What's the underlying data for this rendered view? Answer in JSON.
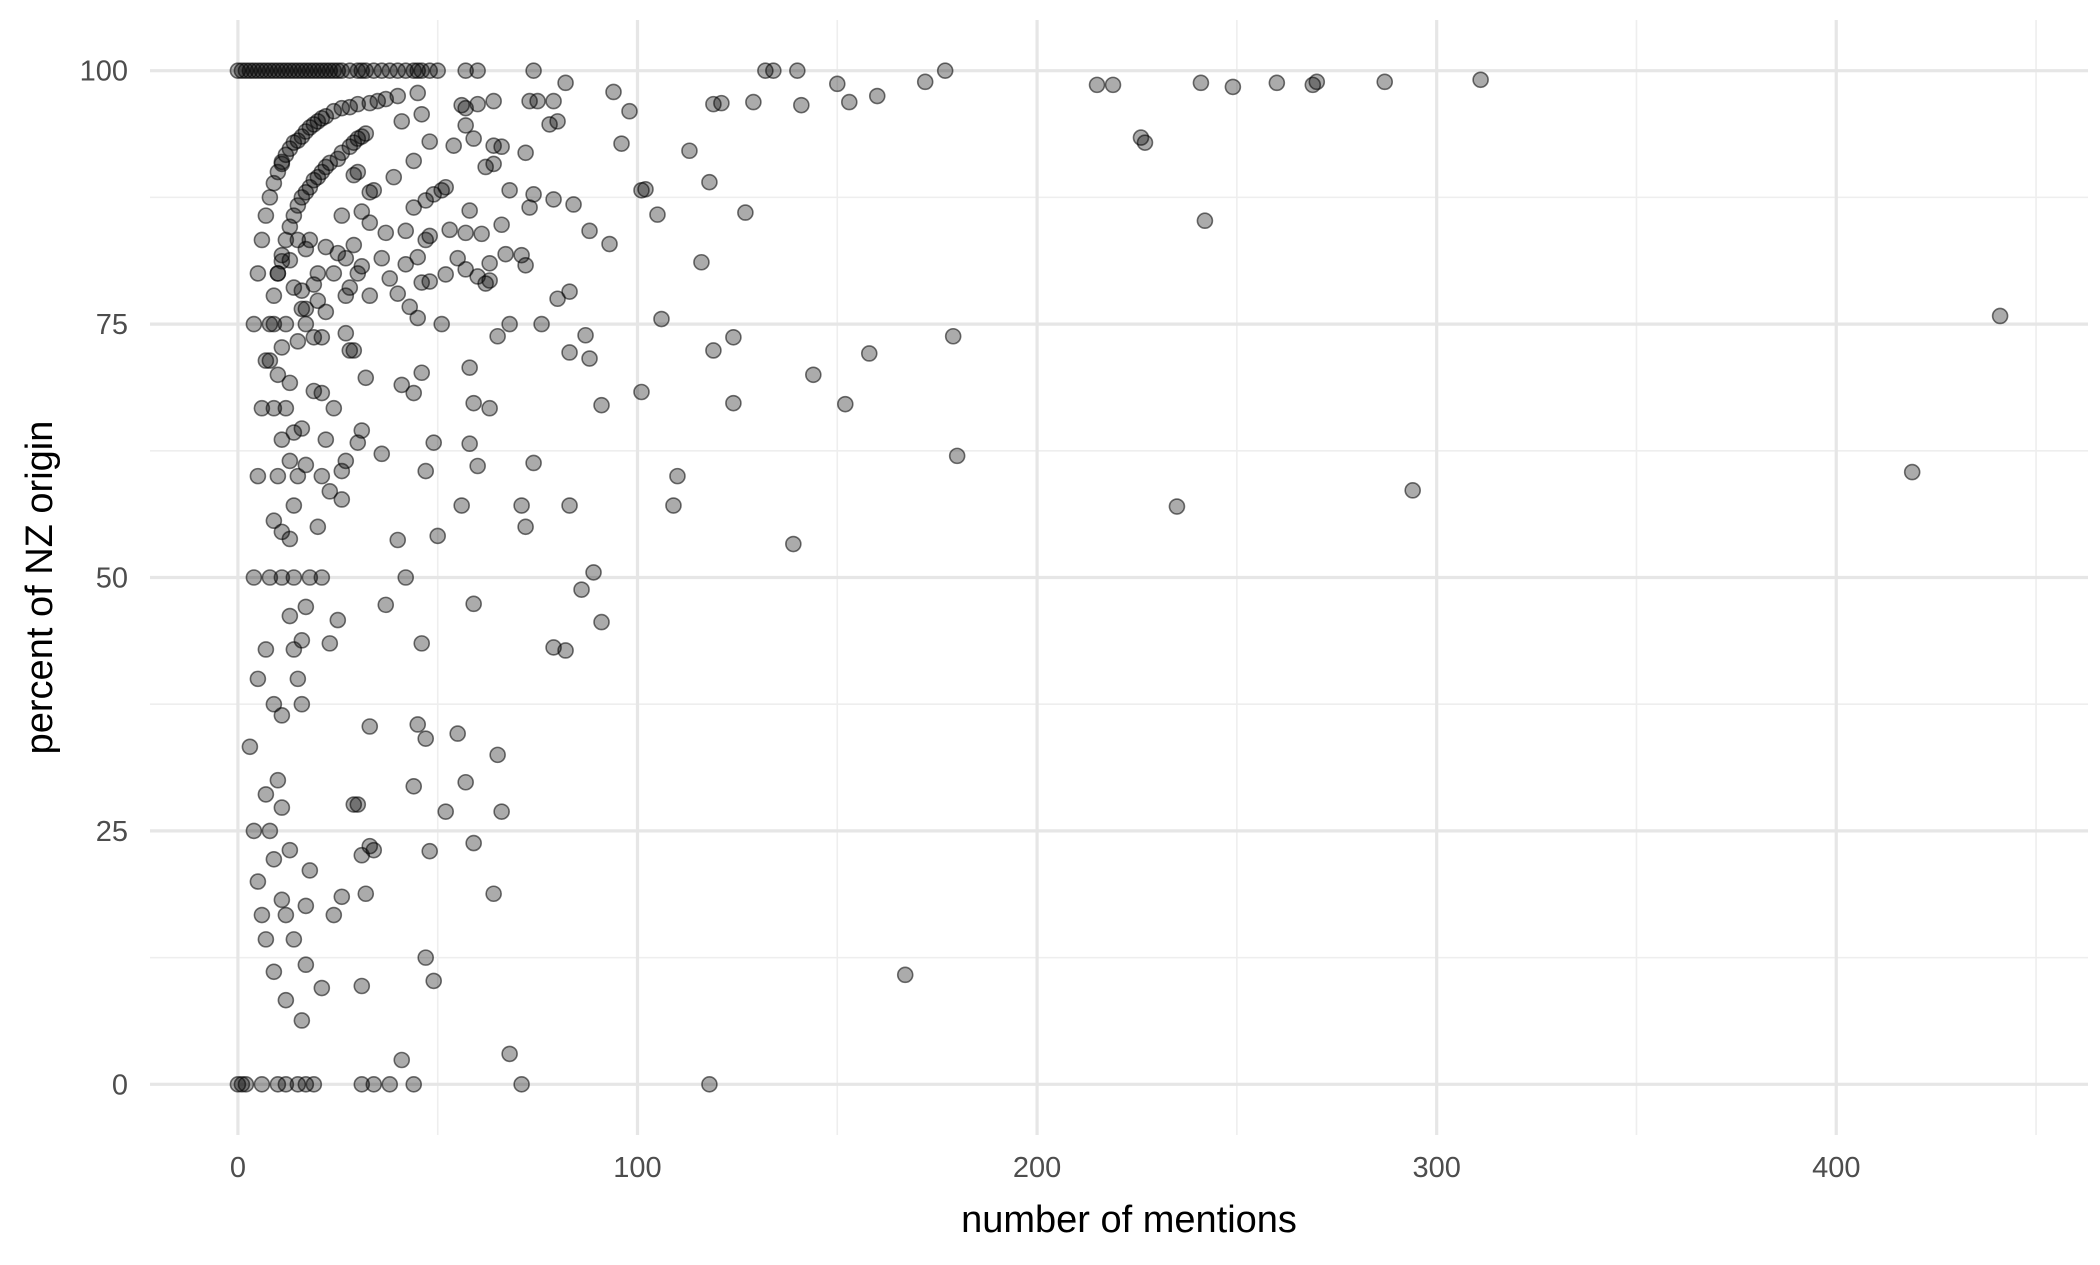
{
  "chart_data": {
    "type": "scatter",
    "xlabel": "number of mentions",
    "ylabel": "percent of NZ origin",
    "xlim": [
      -22,
      463
    ],
    "ylim": [
      -5,
      105
    ],
    "x_ticks": [
      0,
      100,
      200,
      300,
      400
    ],
    "y_ticks": [
      0,
      25,
      50,
      75,
      100
    ],
    "x_minor_ticks": [
      50,
      150,
      250,
      350,
      450
    ],
    "y_minor_ticks": [
      12.5,
      37.5,
      62.5,
      87.5
    ],
    "x_tick_labels": [
      "0",
      "100",
      "200",
      "300",
      "400"
    ],
    "y_tick_labels": [
      "0",
      "25",
      "50",
      "75",
      "100"
    ],
    "grid": true,
    "point_color": "#000000",
    "point_alpha": 0.33,
    "points": [
      [
        0,
        100
      ],
      [
        1,
        100
      ],
      [
        2,
        100
      ],
      [
        3,
        100
      ],
      [
        4,
        100
      ],
      [
        5,
        100
      ],
      [
        6,
        100
      ],
      [
        7,
        100
      ],
      [
        8,
        100
      ],
      [
        9,
        100
      ],
      [
        10,
        100
      ],
      [
        11,
        100
      ],
      [
        12,
        100
      ],
      [
        13,
        100
      ],
      [
        14,
        100
      ],
      [
        15,
        100
      ],
      [
        16,
        100
      ],
      [
        17,
        100
      ],
      [
        18,
        100
      ],
      [
        19,
        100
      ],
      [
        20,
        100
      ],
      [
        21,
        100
      ],
      [
        22,
        100
      ],
      [
        23,
        100
      ],
      [
        24,
        100
      ],
      [
        25,
        100
      ],
      [
        26,
        100
      ],
      [
        28,
        100
      ],
      [
        30,
        100
      ],
      [
        31,
        100
      ],
      [
        32,
        100
      ],
      [
        34,
        100
      ],
      [
        36,
        100
      ],
      [
        38,
        100
      ],
      [
        40,
        100
      ],
      [
        42,
        100
      ],
      [
        44,
        100
      ],
      [
        45,
        100
      ],
      [
        46,
        100
      ],
      [
        48,
        100
      ],
      [
        50,
        100
      ],
      [
        57,
        100
      ],
      [
        60,
        100
      ],
      [
        74,
        100
      ],
      [
        132,
        100
      ],
      [
        134,
        100
      ],
      [
        140,
        100
      ],
      [
        177,
        100
      ],
      [
        60,
        96.7
      ],
      [
        64,
        97
      ],
      [
        73,
        97
      ],
      [
        75,
        97
      ],
      [
        79,
        97
      ],
      [
        82,
        98.8
      ],
      [
        94,
        97.9
      ],
      [
        98,
        96
      ],
      [
        119,
        96.7
      ],
      [
        121,
        96.8
      ],
      [
        129,
        96.9
      ],
      [
        141,
        96.6
      ],
      [
        150,
        98.7
      ],
      [
        153,
        96.9
      ],
      [
        160,
        97.5
      ],
      [
        172,
        98.9
      ],
      [
        215,
        98.6
      ],
      [
        219,
        98.6
      ],
      [
        241,
        98.8
      ],
      [
        249,
        98.4
      ],
      [
        260,
        98.8
      ],
      [
        269,
        98.6
      ],
      [
        270,
        98.9
      ],
      [
        287,
        98.9
      ],
      [
        311,
        99.1
      ],
      [
        45,
        97.8
      ],
      [
        37,
        97.2
      ],
      [
        40,
        97.5
      ],
      [
        35,
        97
      ],
      [
        33,
        96.8
      ],
      [
        30,
        96.7
      ],
      [
        28,
        96.4
      ],
      [
        26,
        96.3
      ],
      [
        24,
        96
      ],
      [
        22,
        95.5
      ],
      [
        21,
        95.3
      ],
      [
        20,
        95
      ],
      [
        19,
        94.7
      ],
      [
        18,
        94.4
      ],
      [
        17,
        94
      ],
      [
        16,
        93.5
      ],
      [
        15,
        93.1
      ],
      [
        14,
        92.9
      ],
      [
        13,
        92.3
      ],
      [
        12,
        91.7
      ],
      [
        11,
        91
      ],
      [
        10,
        90
      ],
      [
        11,
        90.8
      ],
      [
        9,
        88.9
      ],
      [
        8,
        87.5
      ],
      [
        7,
        85.7
      ],
      [
        6,
        83.3
      ],
      [
        5,
        80
      ],
      [
        4,
        75
      ],
      [
        41,
        95
      ],
      [
        46,
        95.7
      ],
      [
        56,
        96.6
      ],
      [
        57,
        96.3
      ],
      [
        57,
        94.6
      ],
      [
        78,
        94.7
      ],
      [
        80,
        95
      ],
      [
        44,
        91.1
      ],
      [
        48,
        93
      ],
      [
        59,
        93.3
      ],
      [
        64,
        92.6
      ],
      [
        66,
        92.5
      ],
      [
        54,
        92.6
      ],
      [
        72,
        91.9
      ],
      [
        96,
        92.8
      ],
      [
        113,
        92.1
      ],
      [
        226,
        93.4
      ],
      [
        227,
        92.9
      ],
      [
        30,
        93.3
      ],
      [
        31,
        93.5
      ],
      [
        32,
        93.8
      ],
      [
        29,
        92.9
      ],
      [
        28,
        92.5
      ],
      [
        26,
        91.9
      ],
      [
        25,
        91.3
      ],
      [
        23,
        90.9
      ],
      [
        22,
        90.5
      ],
      [
        21,
        90
      ],
      [
        20,
        89.5
      ],
      [
        19,
        89.2
      ],
      [
        18,
        88.5
      ],
      [
        17,
        88
      ],
      [
        16,
        87.5
      ],
      [
        15,
        86.7
      ],
      [
        14,
        85.7
      ],
      [
        13,
        84.6
      ],
      [
        12,
        83.3
      ],
      [
        11,
        81.8
      ],
      [
        10,
        80
      ],
      [
        9,
        77.8
      ],
      [
        8,
        75
      ],
      [
        7,
        71.4
      ],
      [
        6,
        66.7
      ],
      [
        5,
        60
      ],
      [
        4,
        50
      ],
      [
        3,
        33.3
      ],
      [
        2,
        0
      ],
      [
        1,
        0
      ],
      [
        0,
        0
      ],
      [
        30,
        90
      ],
      [
        34,
        88.2
      ],
      [
        33,
        88
      ],
      [
        29,
        89.7
      ],
      [
        39,
        89.5
      ],
      [
        44,
        86.5
      ],
      [
        47,
        87.2
      ],
      [
        49,
        87.8
      ],
      [
        51,
        88.2
      ],
      [
        52,
        88.5
      ],
      [
        62,
        90.5
      ],
      [
        64,
        90.8
      ],
      [
        68,
        88.2
      ],
      [
        73,
        86.5
      ],
      [
        74,
        87.8
      ],
      [
        79,
        87.3
      ],
      [
        84,
        86.8
      ],
      [
        101,
        88.2
      ],
      [
        102,
        88.3
      ],
      [
        118,
        89
      ],
      [
        105,
        85.8
      ],
      [
        127,
        86
      ],
      [
        242,
        85.2
      ],
      [
        26,
        85.7
      ],
      [
        33,
        85
      ],
      [
        31,
        86.1
      ],
      [
        37,
        84
      ],
      [
        42,
        84.2
      ],
      [
        47,
        83.3
      ],
      [
        48,
        83.7
      ],
      [
        53,
        84.3
      ],
      [
        57,
        84
      ],
      [
        58,
        86.2
      ],
      [
        61,
        83.9
      ],
      [
        66,
        84.8
      ],
      [
        88,
        84.2
      ],
      [
        93,
        82.9
      ],
      [
        55,
        81.5
      ],
      [
        63,
        81
      ],
      [
        67,
        81.9
      ],
      [
        71,
        81.8
      ],
      [
        72,
        80.8
      ],
      [
        116,
        81.1
      ],
      [
        22,
        82.6
      ],
      [
        25,
        82
      ],
      [
        27,
        81.5
      ],
      [
        29,
        82.8
      ],
      [
        31,
        80.7
      ],
      [
        36,
        81.5
      ],
      [
        42,
        80.9
      ],
      [
        45,
        81.6
      ],
      [
        17,
        82.4
      ],
      [
        18,
        83.3
      ],
      [
        15,
        83.3
      ],
      [
        13,
        81.3
      ],
      [
        11,
        81.2
      ],
      [
        14,
        78.6
      ],
      [
        16,
        78.3
      ],
      [
        19,
        78.9
      ],
      [
        20,
        80
      ],
      [
        24,
        80
      ],
      [
        27,
        77.8
      ],
      [
        30,
        80
      ],
      [
        38,
        79.5
      ],
      [
        40,
        78
      ],
      [
        46,
        79.1
      ],
      [
        48,
        79.2
      ],
      [
        52,
        79.9
      ],
      [
        57,
        80.4
      ],
      [
        60,
        79.7
      ],
      [
        62,
        79
      ],
      [
        63,
        79.3
      ],
      [
        80,
        77.5
      ],
      [
        83,
        78.2
      ],
      [
        10,
        80
      ],
      [
        12,
        75
      ],
      [
        16,
        76.5
      ],
      [
        17,
        76.5
      ],
      [
        20,
        77.3
      ],
      [
        22,
        76.2
      ],
      [
        28,
        78.6
      ],
      [
        33,
        77.8
      ],
      [
        43,
        76.7
      ],
      [
        45,
        75.6
      ],
      [
        21,
        73.7
      ],
      [
        27,
        74.1
      ],
      [
        28,
        72.4
      ],
      [
        29,
        72.4
      ],
      [
        15,
        73.3
      ],
      [
        17,
        75
      ],
      [
        19,
        73.7
      ],
      [
        9,
        75
      ],
      [
        11,
        72.7
      ],
      [
        8,
        71.4
      ],
      [
        10,
        70
      ],
      [
        13,
        69.2
      ],
      [
        19,
        68.4
      ],
      [
        21,
        68.2
      ],
      [
        24,
        66.7
      ],
      [
        32,
        69.7
      ],
      [
        41,
        69
      ],
      [
        44,
        68.2
      ],
      [
        46,
        70.2
      ],
      [
        51,
        75
      ],
      [
        58,
        70.7
      ],
      [
        65,
        73.8
      ],
      [
        68,
        75
      ],
      [
        76,
        75
      ],
      [
        83,
        72.2
      ],
      [
        87,
        73.9
      ],
      [
        88,
        71.6
      ],
      [
        106,
        75.5
      ],
      [
        119,
        72.4
      ],
      [
        124,
        73.7
      ],
      [
        144,
        70
      ],
      [
        158,
        72.1
      ],
      [
        179,
        73.8
      ],
      [
        441,
        75.8
      ],
      [
        9,
        66.7
      ],
      [
        11,
        63.6
      ],
      [
        12,
        66.7
      ],
      [
        14,
        64.3
      ],
      [
        16,
        64.7
      ],
      [
        22,
        63.6
      ],
      [
        30,
        63.3
      ],
      [
        31,
        64.5
      ],
      [
        27,
        61.5
      ],
      [
        26,
        60.5
      ],
      [
        21,
        60
      ],
      [
        17,
        61.1
      ],
      [
        15,
        60
      ],
      [
        13,
        61.5
      ],
      [
        10,
        60
      ],
      [
        9,
        55.6
      ],
      [
        11,
        54.5
      ],
      [
        13,
        53.8
      ],
      [
        14,
        57.1
      ],
      [
        20,
        55
      ],
      [
        23,
        58.5
      ],
      [
        26,
        57.7
      ],
      [
        36,
        62.2
      ],
      [
        47,
        60.5
      ],
      [
        49,
        63.3
      ],
      [
        58,
        63.2
      ],
      [
        59,
        67.2
      ],
      [
        60,
        61
      ],
      [
        63,
        66.7
      ],
      [
        74,
        61.3
      ],
      [
        101,
        68.3
      ],
      [
        91,
        67
      ],
      [
        110,
        60
      ],
      [
        124,
        67.2
      ],
      [
        152,
        67.1
      ],
      [
        180,
        62
      ],
      [
        56,
        57.1
      ],
      [
        71,
        57.1
      ],
      [
        72,
        55
      ],
      [
        83,
        57.1
      ],
      [
        109,
        57.1
      ],
      [
        40,
        53.7
      ],
      [
        50,
        54.1
      ],
      [
        139,
        53.3
      ],
      [
        235,
        57
      ],
      [
        294,
        58.6
      ],
      [
        419,
        60.4
      ],
      [
        8,
        50
      ],
      [
        11,
        50
      ],
      [
        14,
        50
      ],
      [
        18,
        50
      ],
      [
        21,
        50
      ],
      [
        42,
        50
      ],
      [
        59,
        47.4
      ],
      [
        86,
        48.8
      ],
      [
        89,
        50.5
      ],
      [
        91,
        45.6
      ],
      [
        37,
        47.3
      ],
      [
        25,
        45.8
      ],
      [
        13,
        46.2
      ],
      [
        17,
        47.1
      ],
      [
        23,
        43.5
      ],
      [
        16,
        43.8
      ],
      [
        14,
        42.9
      ],
      [
        7,
        42.9
      ],
      [
        46,
        43.5
      ],
      [
        79,
        43.1
      ],
      [
        82,
        42.8
      ],
      [
        5,
        40
      ],
      [
        15,
        40
      ],
      [
        9,
        37.5
      ],
      [
        16,
        37.5
      ],
      [
        11,
        36.4
      ],
      [
        33,
        35.3
      ],
      [
        45,
        35.5
      ],
      [
        47,
        34.1
      ],
      [
        55,
        34.6
      ],
      [
        65,
        32.5
      ],
      [
        57,
        29.8
      ],
      [
        66,
        26.9
      ],
      [
        52,
        26.9
      ],
      [
        44,
        29.4
      ],
      [
        29,
        27.6
      ],
      [
        30,
        27.6
      ],
      [
        10,
        30
      ],
      [
        7,
        28.6
      ],
      [
        11,
        27.3
      ],
      [
        8,
        25
      ],
      [
        4,
        25
      ],
      [
        13,
        23.1
      ],
      [
        9,
        22.2
      ],
      [
        31,
        22.6
      ],
      [
        33,
        23.5
      ],
      [
        34,
        23.1
      ],
      [
        48,
        23
      ],
      [
        59,
        23.8
      ],
      [
        18,
        21.1
      ],
      [
        5,
        20
      ],
      [
        11,
        18.2
      ],
      [
        17,
        17.6
      ],
      [
        24,
        16.7
      ],
      [
        26,
        18.5
      ],
      [
        32,
        18.8
      ],
      [
        64,
        18.8
      ],
      [
        6,
        16.7
      ],
      [
        12,
        16.7
      ],
      [
        7,
        14.3
      ],
      [
        14,
        14.3
      ],
      [
        17,
        11.8
      ],
      [
        9,
        11.1
      ],
      [
        21,
        9.5
      ],
      [
        12,
        8.3
      ],
      [
        16,
        6.3
      ],
      [
        31,
        9.7
      ],
      [
        47,
        12.5
      ],
      [
        49,
        10.2
      ],
      [
        68,
        3
      ],
      [
        41,
        2.4
      ],
      [
        167,
        10.8
      ],
      [
        6,
        0
      ],
      [
        10,
        0
      ],
      [
        12,
        0
      ],
      [
        15,
        0
      ],
      [
        17,
        0
      ],
      [
        19,
        0
      ],
      [
        31,
        0
      ],
      [
        34,
        0
      ],
      [
        38,
        0
      ],
      [
        44,
        0
      ],
      [
        71,
        0
      ],
      [
        118,
        0
      ]
    ]
  }
}
